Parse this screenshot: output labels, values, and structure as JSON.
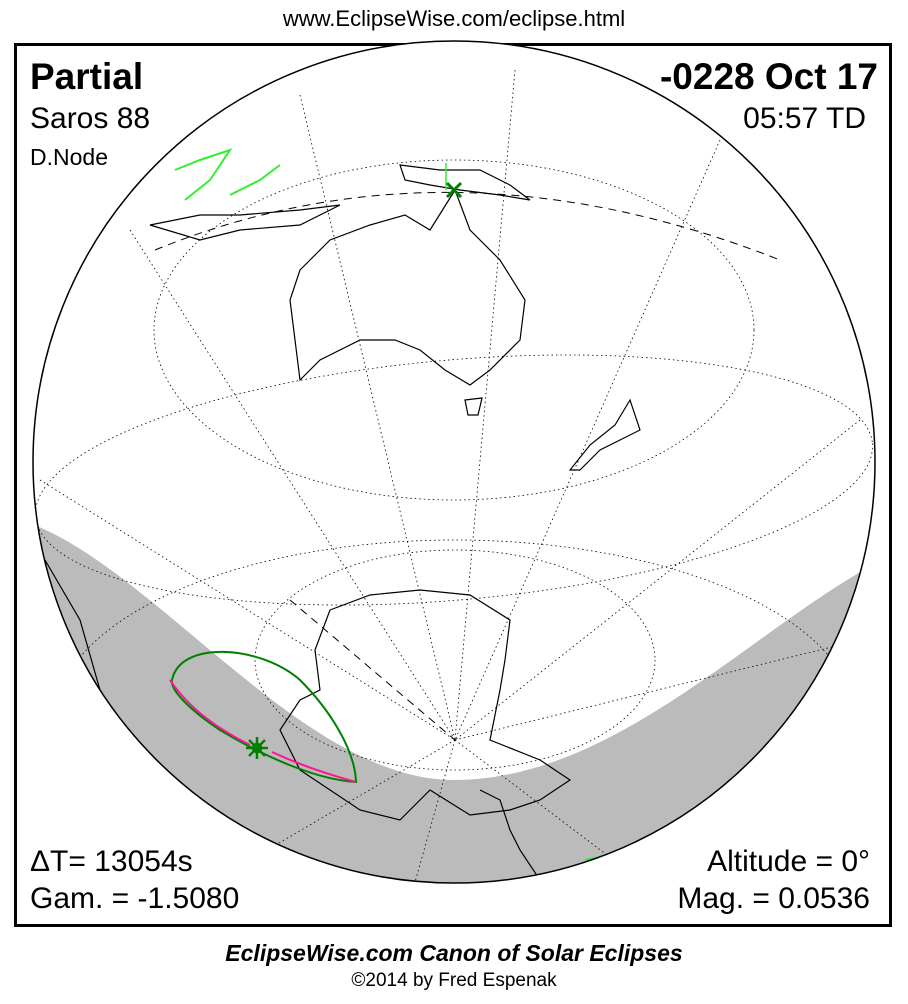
{
  "header": {
    "url": "www.EclipseWise.com/eclipse.html"
  },
  "eclipse": {
    "type": "Partial",
    "date": "-0228 Oct 17",
    "saros": "Saros  88",
    "time": "05:57 TD",
    "node": "D.Node",
    "delta_t": "ΔT=  13054s",
    "gamma": "Gam. = -1.5080",
    "altitude": "Altitude =  0°",
    "magnitude": "Mag. = 0.0536"
  },
  "footer": {
    "title": "EclipseWise.com Canon of Solar Eclipses",
    "copyright": "©2014 by Fred Espenak"
  },
  "colors": {
    "night": "#bbbbbb",
    "eclipse_limit": "#008000",
    "max_line": "#ff1493",
    "land_in_eclipse": "#33ee33"
  },
  "markers": {
    "greatest_eclipse": "star-icon",
    "sub_solar": "x-icon"
  }
}
